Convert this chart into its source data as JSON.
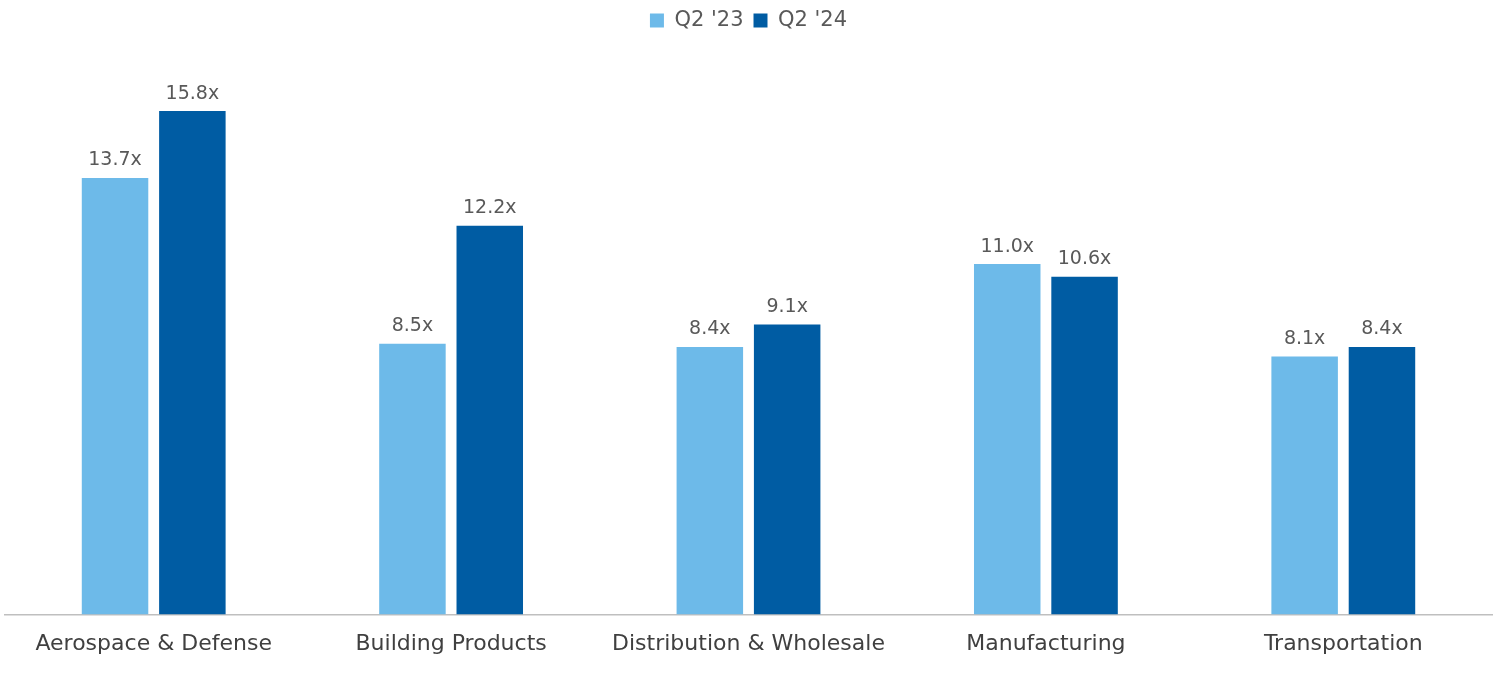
{
  "chart_data": {
    "type": "bar",
    "categories": [
      "Aerospace & Defense",
      "Building Products",
      "Distribution & Wholesale",
      "Manufacturing",
      "Transportation"
    ],
    "series": [
      {
        "name": "Q2 '23",
        "color": "#6dbae9",
        "values": [
          13.7,
          8.5,
          8.4,
          11.0,
          8.1
        ],
        "value_labels": [
          "13.7x",
          "8.5x",
          "8.4x",
          "11.0x",
          "8.1x"
        ]
      },
      {
        "name": "Q2 '24",
        "color": "#005ca3",
        "values": [
          15.8,
          12.2,
          9.1,
          10.6,
          8.4
        ],
        "value_labels": [
          "15.8x",
          "12.2x",
          "9.1x",
          "10.6x",
          "8.4x"
        ]
      }
    ],
    "tick_labels": "x",
    "grid": false,
    "legend": "top"
  }
}
